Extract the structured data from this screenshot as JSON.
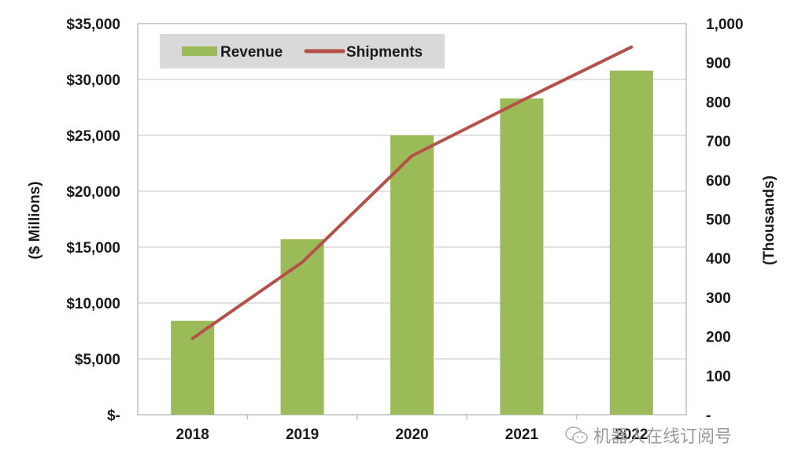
{
  "chart_data": {
    "type": "bar",
    "title": "",
    "categories": [
      "2018",
      "2019",
      "2020",
      "2021",
      "2022"
    ],
    "series": [
      {
        "name": "Revenue",
        "type": "bar",
        "axis": "left",
        "color": "#9bbb59",
        "values": [
          8400,
          15700,
          25000,
          28300,
          30800
        ]
      },
      {
        "name": "Shipments",
        "type": "line",
        "axis": "right",
        "color": "#b5504a",
        "values": [
          195,
          390,
          662,
          803,
          940
        ]
      }
    ],
    "ylabel": "($ Millions)",
    "ylabel_right": "(Thousands)",
    "ylim": [
      0,
      35000
    ],
    "ylim_right": [
      0,
      1000
    ],
    "yticks": [
      0,
      5000,
      10000,
      15000,
      20000,
      25000,
      30000,
      35000
    ],
    "ytick_labels": [
      "$-",
      "$5,000",
      "$10,000",
      "$15,000",
      "$20,000",
      "$25,000",
      "$30,000",
      "$35,000"
    ],
    "yticks_right": [
      0,
      100,
      200,
      300,
      400,
      500,
      600,
      700,
      800,
      900,
      1000
    ],
    "ytick_labels_right": [
      "-",
      "100",
      "200",
      "300",
      "400",
      "500",
      "600",
      "700",
      "800",
      "900",
      "1,000"
    ],
    "grid": true,
    "legend": {
      "position": "top-left",
      "entries": [
        "Revenue",
        "Shipments"
      ],
      "background": "#d9d9d9"
    }
  },
  "watermark": {
    "text": "机器人在线订阅号"
  }
}
